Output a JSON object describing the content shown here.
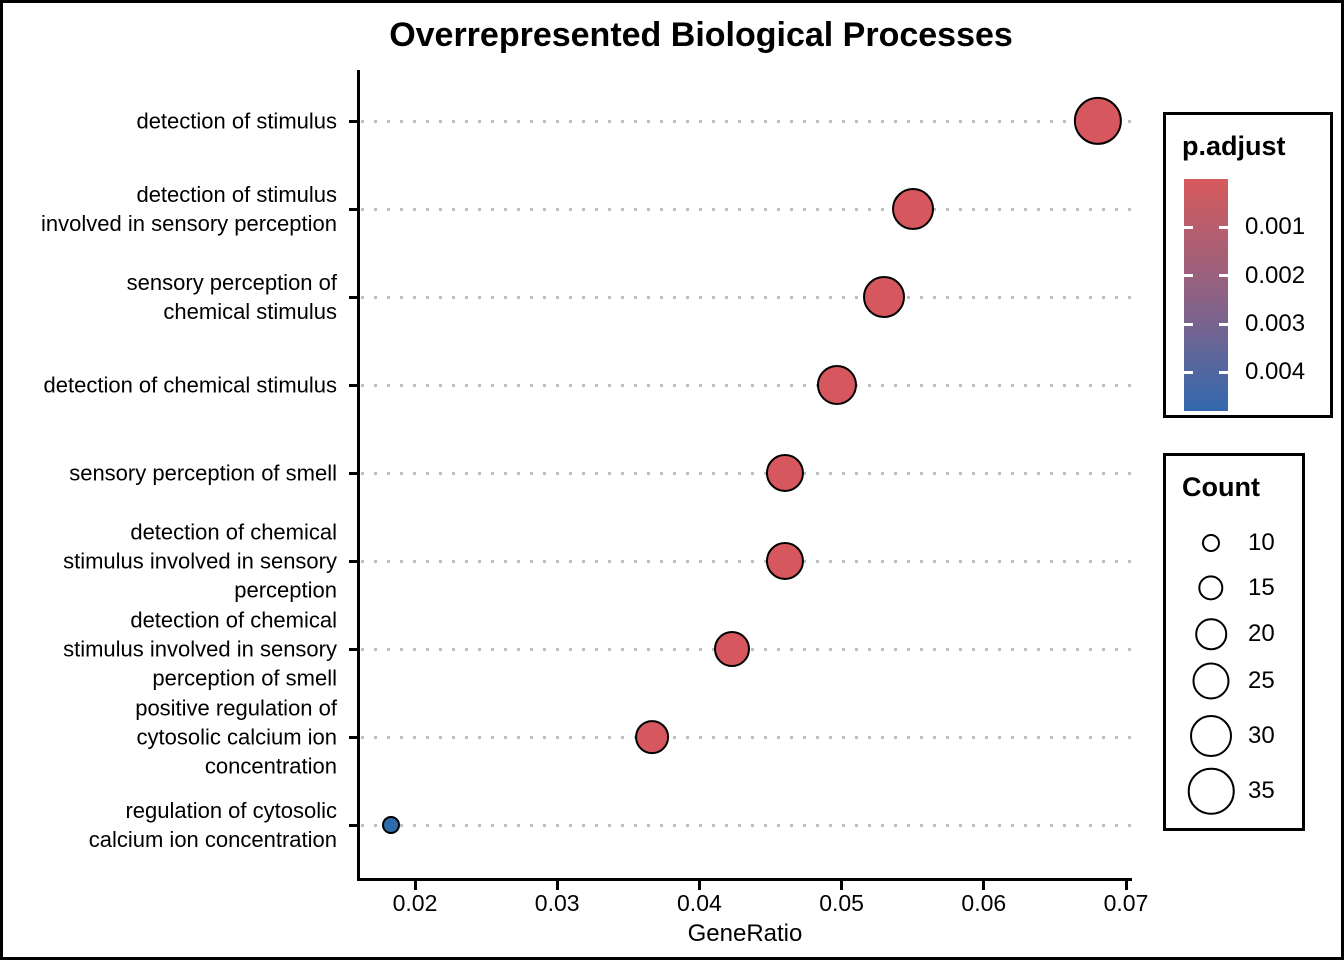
{
  "chart_data": {
    "type": "scatter",
    "title": "Overrepresented Biological Processes",
    "xlabel": "GeneRatio",
    "ylabel": "",
    "xlim": [
      0.016,
      0.0705
    ],
    "x_ticks": [
      0.02,
      0.03,
      0.04,
      0.05,
      0.06,
      0.07
    ],
    "grid": "dotted horizontal gridlines, no top/right frame",
    "points": [
      {
        "label": "detection of stimulus",
        "gene_ratio": 0.068,
        "count": 37,
        "p_adjust": 5e-05,
        "color": "#D6575E"
      },
      {
        "label": "detection of stimulus\ninvolved in sensory perception",
        "gene_ratio": 0.055,
        "count": 30,
        "p_adjust": 0.0001,
        "color": "#D6575E"
      },
      {
        "label": "sensory perception of\nchemical stimulus",
        "gene_ratio": 0.053,
        "count": 30,
        "p_adjust": 0.0001,
        "color": "#D6575E"
      },
      {
        "label": "detection of chemical stimulus",
        "gene_ratio": 0.0497,
        "count": 28,
        "p_adjust": 0.0002,
        "color": "#D6575E"
      },
      {
        "label": "sensory perception of smell",
        "gene_ratio": 0.046,
        "count": 26,
        "p_adjust": 0.0003,
        "color": "#D6575E"
      },
      {
        "label": "detection of chemical\nstimulus involved in sensory\nperception",
        "gene_ratio": 0.046,
        "count": 26,
        "p_adjust": 0.0003,
        "color": "#D6575E"
      },
      {
        "label": "detection of chemical\nstimulus involved in sensory\nperception of smell",
        "gene_ratio": 0.0423,
        "count": 24,
        "p_adjust": 0.0004,
        "color": "#D6575E"
      },
      {
        "label": "positive regulation of\ncytosolic calcium ion\nconcentration",
        "gene_ratio": 0.0367,
        "count": 22,
        "p_adjust": 0.0005,
        "color": "#D6575E"
      },
      {
        "label": "regulation of cytosolic\ncalcium ion concentration",
        "gene_ratio": 0.0183,
        "count": 10,
        "p_adjust": 0.0048,
        "color": "#2D6CA9"
      }
    ],
    "color_legend": {
      "title": "p.adjust",
      "tick_labels": [
        "0.001",
        "0.002",
        "0.003",
        "0.004"
      ],
      "tick_values": [
        0.001,
        0.002,
        0.003,
        0.004
      ],
      "domain": [
        0.0,
        0.0048
      ],
      "top_color": "#D65A5C",
      "mid_color": "#8E6284",
      "bottom_color": "#3369AE",
      "position": "right"
    },
    "size_legend": {
      "title": "Count",
      "values": [
        10,
        15,
        20,
        25,
        30,
        35
      ],
      "position": "right"
    }
  }
}
